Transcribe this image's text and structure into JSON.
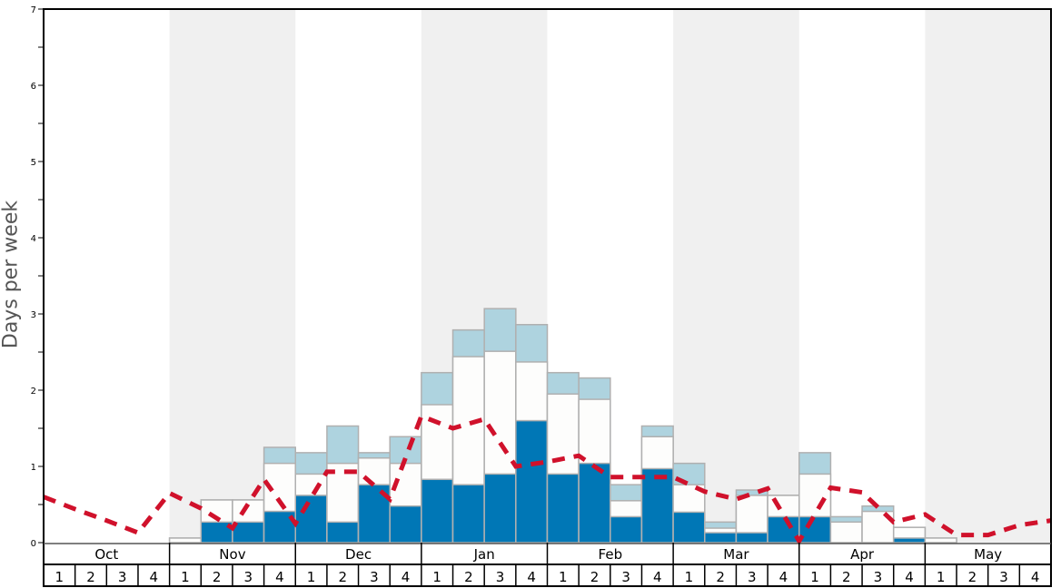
{
  "chart_data": {
    "type": "bar",
    "subtype": "stacked bar with dashed line overlay",
    "title": "",
    "ylabel": "Days per week",
    "xlabel": "",
    "ylim": [
      0,
      7
    ],
    "yticks": [
      0,
      1,
      2,
      3,
      4,
      5,
      6,
      7
    ],
    "months": [
      "Oct",
      "Nov",
      "Dec",
      "Jan",
      "Feb",
      "Mar",
      "Apr",
      "May"
    ],
    "weeks_per_month": [
      "1",
      "2",
      "3",
      "4"
    ],
    "shaded_months": [
      "Nov",
      "Jan",
      "Mar",
      "May"
    ],
    "categories": [
      "Oct 1",
      "Oct 2",
      "Oct 3",
      "Oct 4",
      "Nov 1",
      "Nov 2",
      "Nov 3",
      "Nov 4",
      "Dec 1",
      "Dec 2",
      "Dec 3",
      "Dec 4",
      "Jan 1",
      "Jan 2",
      "Jan 3",
      "Jan 4",
      "Feb 1",
      "Feb 2",
      "Feb 3",
      "Feb 4",
      "Mar 1",
      "Mar 2",
      "Mar 3",
      "Mar 4",
      "Apr 1",
      "Apr 2",
      "Apr 3",
      "Apr 4",
      "May 1",
      "May 2",
      "May 3",
      "May 4"
    ],
    "series": [
      {
        "name": "dark blue (bottom)",
        "color": "#0077b6",
        "values": [
          0,
          0,
          0,
          0,
          0,
          0.27,
          0.27,
          0.41,
          0.62,
          0.27,
          0.76,
          0.48,
          0.83,
          0.76,
          0.9,
          1.6,
          0.9,
          1.04,
          0.34,
          0.97,
          0.4,
          0.13,
          0.13,
          0.34,
          0.34,
          0,
          0,
          0.06,
          0,
          0,
          0,
          0
        ]
      },
      {
        "name": "white (middle, cumulative top)",
        "color": "#ffffff",
        "values": [
          0,
          0,
          0,
          0,
          0.06,
          0.56,
          0.56,
          1.04,
          0.9,
          1.04,
          1.11,
          1.04,
          1.81,
          2.44,
          2.51,
          2.37,
          1.95,
          1.88,
          0.55,
          1.39,
          0.76,
          0.19,
          0.62,
          0.62,
          0.9,
          0.27,
          0.41,
          0.2,
          0.06,
          0,
          0,
          0
        ]
      },
      {
        "name": "light blue (top, cumulative top)",
        "color": "#aed3df",
        "values": [
          0,
          0,
          0,
          0,
          0.06,
          0.56,
          0.56,
          1.25,
          1.18,
          1.53,
          1.18,
          1.39,
          2.23,
          2.79,
          3.07,
          2.86,
          2.23,
          2.16,
          0.76,
          1.53,
          1.04,
          0.27,
          0.69,
          0.62,
          1.18,
          0.34,
          0.48,
          0.2,
          0.06,
          0,
          0,
          0
        ]
      },
      {
        "name": "dashed line",
        "color": "#d0112b",
        "style": "dashed",
        "values": [
          0.6,
          0.44,
          0.29,
          0.13,
          0.65,
          0.45,
          0.19,
          0.83,
          0.25,
          0.93,
          0.93,
          0.57,
          1.66,
          1.5,
          1.62,
          1.0,
          1.06,
          1.14,
          0.86,
          0.86,
          0.86,
          0.67,
          0.57,
          0.71,
          0.02,
          0.72,
          0.66,
          0.27,
          0.37,
          0.1,
          0.1,
          0.23
        ],
        "end_value": 0.29
      }
    ],
    "grid": false,
    "legend": "none"
  },
  "colors": {
    "dark_blue": "#0077b6",
    "light_blue": "#aed3df",
    "bar_white": "#fdfdfc",
    "bar_border": "#b0b0b0",
    "line_red": "#d0112b",
    "shade": "#f0f0f0"
  }
}
